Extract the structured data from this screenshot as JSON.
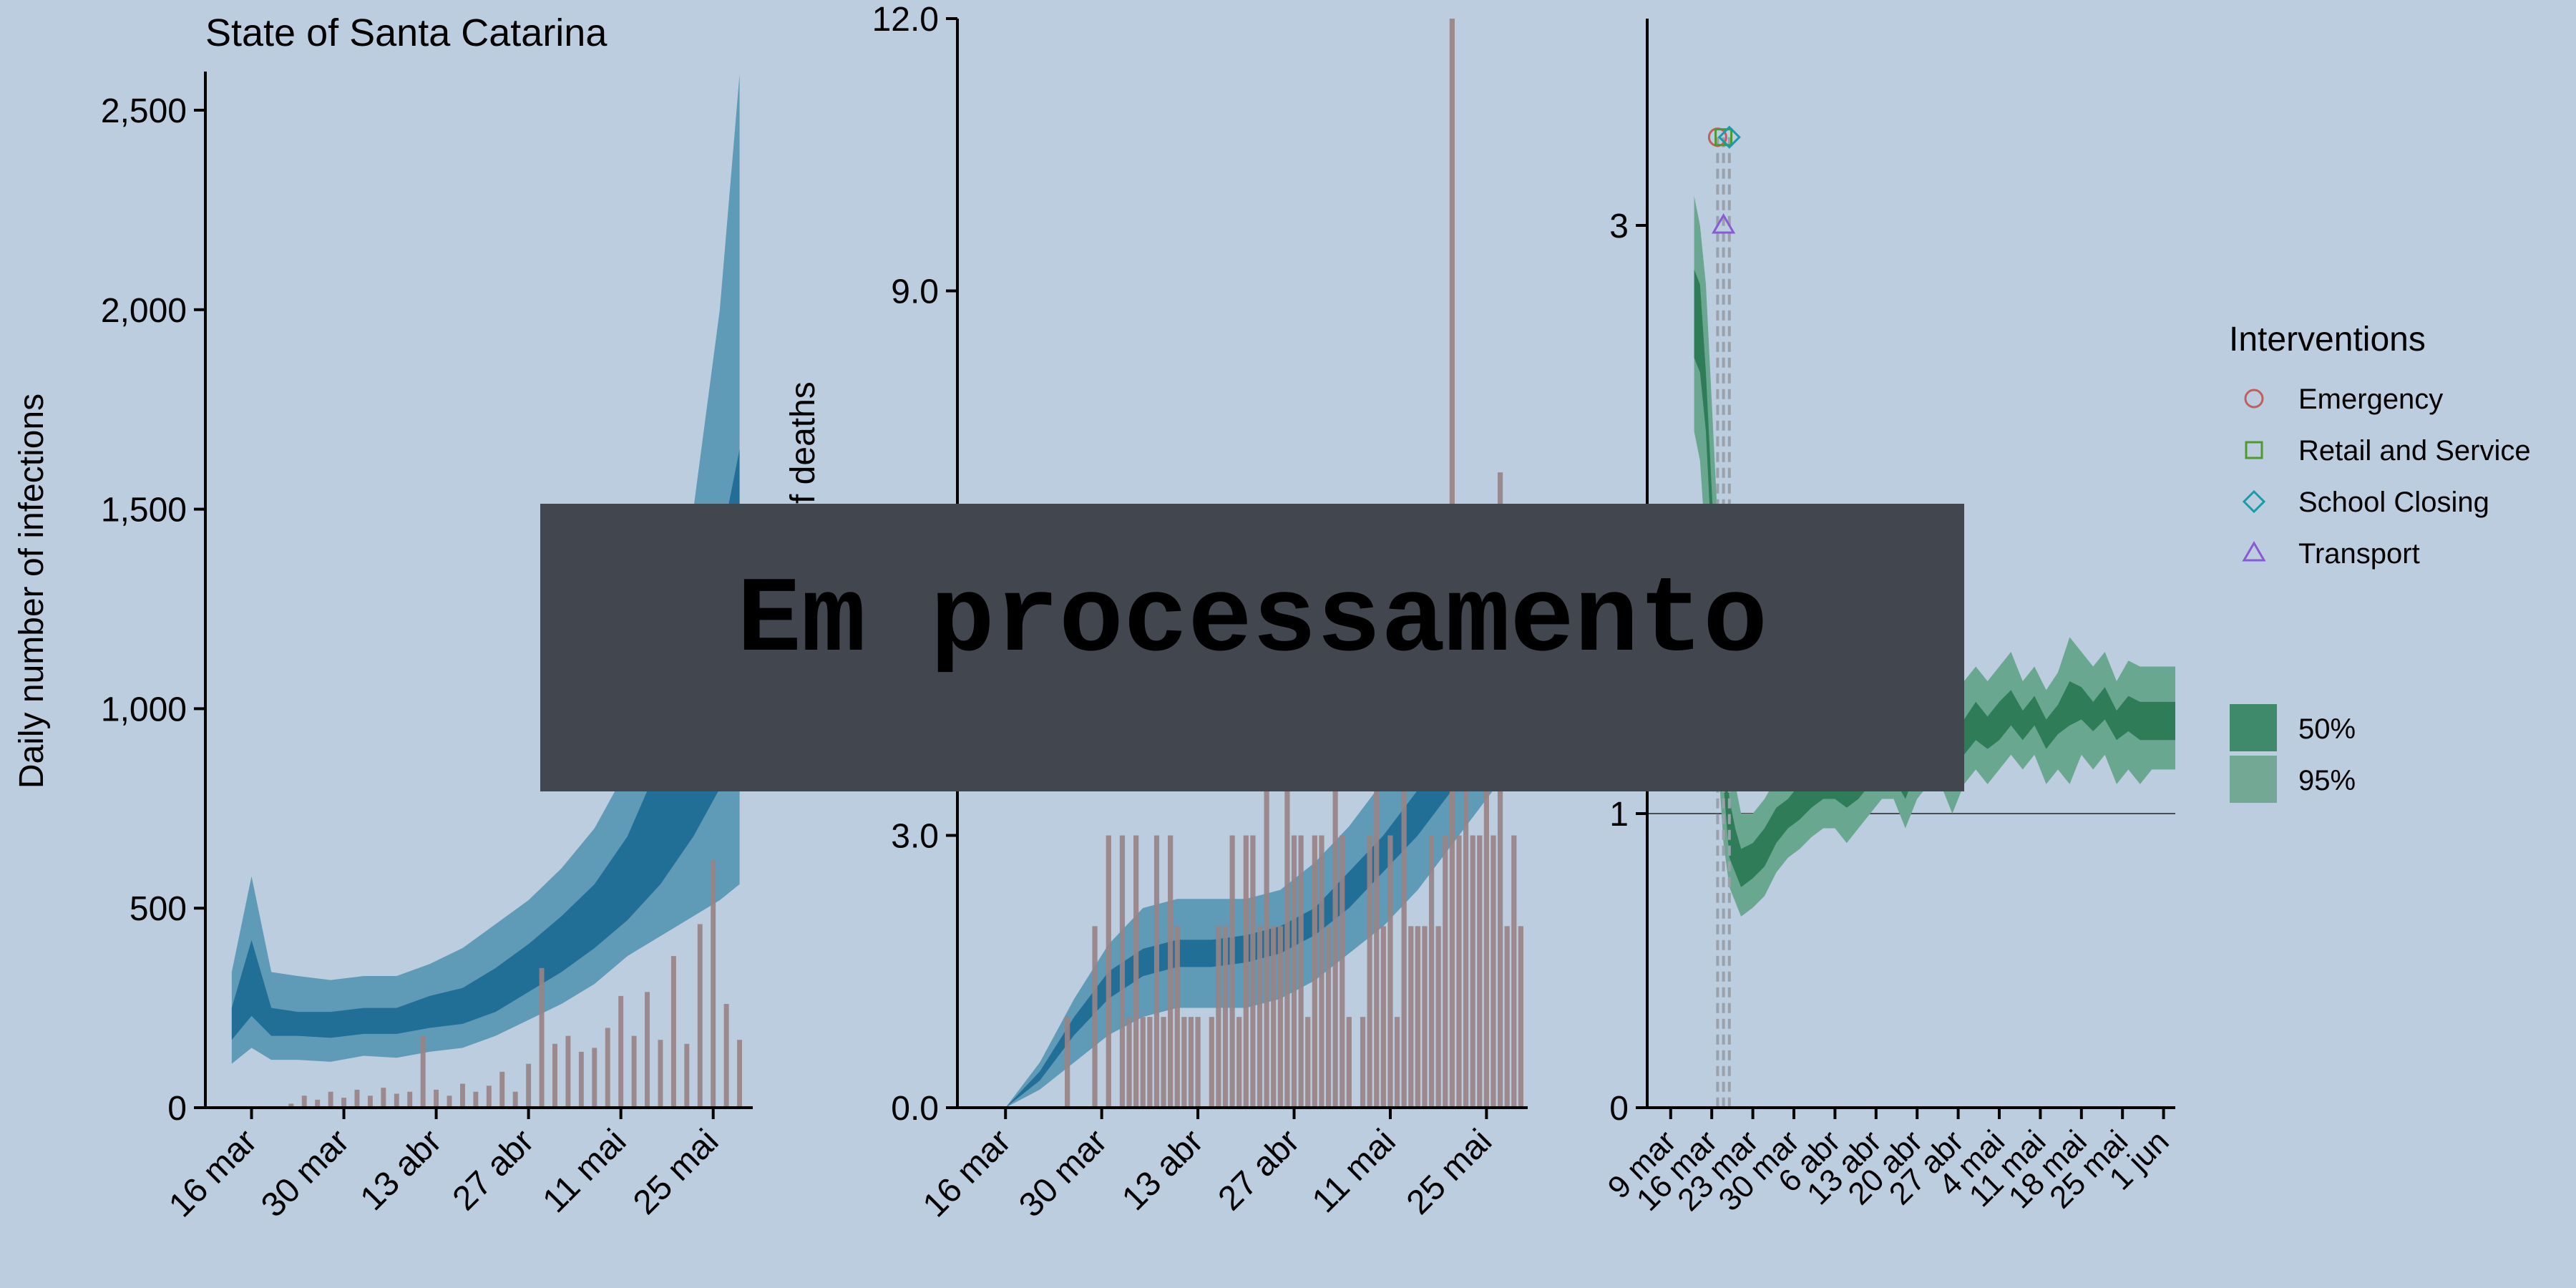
{
  "title": "State of Santa Catarina",
  "overlay_text": "Em processamento",
  "chart_data": [
    {
      "type": "area",
      "panel": "infections",
      "ylabel": "Daily number of infections",
      "ylim": [
        0,
        2600
      ],
      "yticks": [
        0,
        500,
        1000,
        1500,
        2000,
        2500
      ],
      "ytick_labels": [
        "0",
        "500",
        "1,000",
        "1,500",
        "2,000",
        "2,500"
      ],
      "xlim": [
        -4,
        79
      ],
      "xticks": [
        3,
        17,
        31,
        45,
        59,
        73
      ],
      "xtick_labels": [
        "16 mar",
        "30 mar",
        "13 abr",
        "27 abr",
        "11 mai",
        "25 mai"
      ],
      "band95": {
        "x": [
          0,
          3,
          6,
          10,
          15,
          20,
          25,
          30,
          35,
          40,
          45,
          50,
          55,
          60,
          65,
          70,
          74,
          77
        ],
        "low": [
          110,
          150,
          120,
          120,
          115,
          130,
          125,
          140,
          150,
          180,
          220,
          260,
          310,
          380,
          430,
          480,
          520,
          560
        ],
        "high": [
          340,
          580,
          340,
          330,
          320,
          330,
          330,
          360,
          400,
          460,
          520,
          600,
          700,
          850,
          1100,
          1500,
          2000,
          2590
        ]
      },
      "band50": {
        "x": [
          0,
          3,
          6,
          10,
          15,
          20,
          25,
          30,
          35,
          40,
          45,
          50,
          55,
          60,
          65,
          70,
          74,
          77
        ],
        "low": [
          170,
          230,
          180,
          180,
          175,
          185,
          185,
          200,
          210,
          240,
          290,
          340,
          400,
          470,
          560,
          680,
          800,
          950
        ],
        "high": [
          250,
          420,
          250,
          240,
          240,
          250,
          250,
          280,
          300,
          350,
          410,
          480,
          560,
          680,
          870,
          1150,
          1400,
          1650
        ]
      },
      "observed": {
        "x": [
          9,
          11,
          13,
          15,
          17,
          19,
          21,
          23,
          25,
          27,
          29,
          31,
          33,
          35,
          37,
          39,
          41,
          43,
          45,
          47,
          49,
          51,
          53,
          55,
          57,
          59,
          61,
          63,
          65,
          67,
          69,
          71,
          73,
          75,
          77
        ],
        "values": [
          10,
          30,
          20,
          40,
          25,
          45,
          30,
          50,
          35,
          40,
          180,
          45,
          30,
          60,
          40,
          55,
          90,
          40,
          110,
          350,
          160,
          180,
          140,
          150,
          200,
          280,
          180,
          290,
          170,
          380,
          160,
          460,
          620,
          260,
          170
        ]
      }
    },
    {
      "type": "area",
      "panel": "deaths",
      "ylabel": "Daily number of deaths",
      "ylim": [
        0,
        12
      ],
      "yticks": [
        0,
        3,
        6,
        9,
        12
      ],
      "ytick_labels": [
        "0.0",
        "3.0",
        "6.0",
        "9.0",
        "12.0"
      ],
      "xlim": [
        -4,
        79
      ],
      "xticks": [
        3,
        17,
        31,
        45,
        59,
        73
      ],
      "xtick_labels": [
        "16 mar",
        "30 mar",
        "13 abr",
        "27 abr",
        "11 mai",
        "25 mai"
      ],
      "band95": {
        "x": [
          3,
          8,
          13,
          18,
          23,
          28,
          33,
          38,
          43,
          48,
          53,
          58,
          63,
          68,
          73,
          78
        ],
        "low": [
          0,
          0.2,
          0.5,
          0.8,
          1.0,
          1.1,
          1.1,
          1.1,
          1.2,
          1.4,
          1.7,
          2.0,
          2.4,
          2.9,
          3.4,
          3.9
        ],
        "high": [
          0,
          0.5,
          1.2,
          1.8,
          2.2,
          2.3,
          2.3,
          2.3,
          2.4,
          2.7,
          3.1,
          3.6,
          4.2,
          4.9,
          5.6,
          6.4
        ]
      },
      "band50": {
        "x": [
          3,
          8,
          13,
          18,
          23,
          28,
          33,
          38,
          43,
          48,
          53,
          58,
          63,
          68,
          73,
          78
        ],
        "low": [
          0,
          0.3,
          0.8,
          1.2,
          1.45,
          1.55,
          1.55,
          1.6,
          1.7,
          1.9,
          2.2,
          2.6,
          3.0,
          3.5,
          4.0,
          4.6
        ],
        "high": [
          0,
          0.4,
          1.0,
          1.5,
          1.75,
          1.85,
          1.85,
          1.9,
          2.0,
          2.2,
          2.6,
          3.0,
          3.5,
          4.0,
          4.6,
          5.2
        ]
      },
      "observed": {
        "x": [
          12,
          16,
          18,
          20,
          21,
          22,
          23,
          24,
          25,
          26,
          27,
          28,
          29,
          30,
          31,
          33,
          34,
          35,
          36,
          37,
          38,
          39,
          40,
          41,
          42,
          43,
          44,
          45,
          46,
          47,
          48,
          49,
          50,
          51,
          52,
          53,
          55,
          56,
          57,
          58,
          59,
          60,
          61,
          62,
          63,
          64,
          65,
          66,
          67,
          68,
          69,
          70,
          71,
          72,
          73,
          74,
          75,
          76,
          77,
          78
        ],
        "values": [
          1,
          2,
          3,
          3,
          1,
          3,
          1,
          1,
          3,
          1,
          3,
          2,
          1,
          1,
          1,
          1,
          2,
          2,
          3,
          1,
          3,
          3,
          2,
          4,
          2,
          2,
          4,
          3,
          3,
          1,
          3,
          3,
          2,
          4,
          3,
          1,
          1,
          3,
          4,
          2,
          3,
          1,
          4,
          2,
          2,
          2,
          3,
          2,
          3,
          12,
          3,
          4,
          3,
          3,
          4,
          3,
          7,
          2,
          3,
          2
        ]
      }
    },
    {
      "type": "area",
      "panel": "rt",
      "ylim": [
        0,
        3.5
      ],
      "yticks": [
        0,
        1,
        3
      ],
      "ytick_labels": [
        "0",
        "1",
        "3"
      ],
      "xlim": [
        -4,
        86
      ],
      "xticks": [
        0,
        7,
        14,
        21,
        28,
        35,
        42,
        49,
        56,
        63,
        70,
        77,
        84
      ],
      "xtick_labels": [
        "9 mar",
        "16 mar",
        "23 mar",
        "30 mar",
        "6 abr",
        "13 abr",
        "20 abr",
        "27 abr",
        "4 mai",
        "11 mai",
        "18 mai",
        "25 mai",
        "1 jun"
      ],
      "reference_line": 1,
      "band95": {
        "x": [
          4,
          5,
          6,
          7,
          8,
          9,
          10,
          11,
          12,
          14,
          16,
          18,
          20,
          22,
          24,
          26,
          28,
          30,
          32,
          34,
          36,
          38,
          40,
          42,
          44,
          46,
          48,
          50,
          52,
          54,
          56,
          58,
          60,
          62,
          64,
          66,
          68,
          70,
          72,
          74,
          76,
          78,
          80,
          82,
          84,
          86
        ],
        "low": [
          2.3,
          2.2,
          1.9,
          1.5,
          1.2,
          0.9,
          0.75,
          0.7,
          0.65,
          0.68,
          0.72,
          0.8,
          0.85,
          0.88,
          0.92,
          0.95,
          0.95,
          0.9,
          0.95,
          1.0,
          1.05,
          1.05,
          0.95,
          1.05,
          1.1,
          1.1,
          1.0,
          1.1,
          1.15,
          1.1,
          1.15,
          1.2,
          1.15,
          1.2,
          1.1,
          1.15,
          1.1,
          1.2,
          1.15,
          1.2,
          1.1,
          1.15,
          1.1,
          1.15,
          1.15,
          1.15
        ],
        "high": [
          3.1,
          3.0,
          2.8,
          2.4,
          2.0,
          1.6,
          1.25,
          1.1,
          1.0,
          1.0,
          1.05,
          1.12,
          1.15,
          1.2,
          1.22,
          1.25,
          1.3,
          1.28,
          1.3,
          1.32,
          1.35,
          1.3,
          1.25,
          1.35,
          1.4,
          1.4,
          1.3,
          1.45,
          1.5,
          1.45,
          1.5,
          1.55,
          1.45,
          1.5,
          1.42,
          1.48,
          1.6,
          1.55,
          1.5,
          1.55,
          1.45,
          1.52,
          1.5,
          1.5,
          1.5,
          1.5
        ]
      },
      "band50": {
        "x": [
          4,
          5,
          6,
          7,
          8,
          9,
          10,
          11,
          12,
          14,
          16,
          18,
          20,
          22,
          24,
          26,
          28,
          30,
          32,
          34,
          36,
          38,
          40,
          42,
          44,
          46,
          48,
          50,
          52,
          54,
          56,
          58,
          60,
          62,
          64,
          66,
          68,
          70,
          72,
          74,
          76,
          78,
          80,
          82,
          84,
          86
        ],
        "low": [
          2.55,
          2.5,
          2.3,
          1.9,
          1.5,
          1.1,
          0.85,
          0.8,
          0.75,
          0.78,
          0.82,
          0.9,
          0.95,
          0.98,
          1.02,
          1.05,
          1.05,
          1.02,
          1.05,
          1.1,
          1.15,
          1.12,
          1.05,
          1.15,
          1.2,
          1.2,
          1.12,
          1.2,
          1.25,
          1.22,
          1.25,
          1.3,
          1.25,
          1.3,
          1.22,
          1.27,
          1.3,
          1.32,
          1.28,
          1.32,
          1.25,
          1.28,
          1.25,
          1.25,
          1.25,
          1.25
        ],
        "high": [
          2.85,
          2.8,
          2.5,
          2.1,
          1.7,
          1.3,
          1.05,
          0.95,
          0.88,
          0.9,
          0.95,
          1.02,
          1.05,
          1.1,
          1.12,
          1.15,
          1.18,
          1.15,
          1.18,
          1.22,
          1.25,
          1.2,
          1.15,
          1.25,
          1.3,
          1.3,
          1.2,
          1.32,
          1.38,
          1.33,
          1.38,
          1.42,
          1.35,
          1.4,
          1.32,
          1.37,
          1.45,
          1.43,
          1.38,
          1.43,
          1.35,
          1.4,
          1.38,
          1.38,
          1.38,
          1.38
        ]
      },
      "intervention_lines": [
        8,
        9,
        10
      ]
    }
  ],
  "legend": {
    "title": "Interventions",
    "items": [
      {
        "label": "Emergency",
        "shape": "circle",
        "color": "#c0605a",
        "x": 8,
        "y": 3.3
      },
      {
        "label": "Retail and Service",
        "shape": "square",
        "color": "#4f9a2e",
        "x": 9,
        "y": 3.3
      },
      {
        "label": "School Closing",
        "shape": "diamond",
        "color": "#1a9ba8",
        "x": 10,
        "y": 3.3
      },
      {
        "label": "Transport",
        "shape": "triangle",
        "color": "#8a5ad6",
        "x": 9,
        "y": 3.0
      }
    ],
    "intervals": [
      {
        "label": "50%",
        "color": "#3e8a6a"
      },
      {
        "label": "95%",
        "color": "#72a894"
      }
    ]
  },
  "colors": {
    "background": "#bccddf",
    "band95_blue": "#5f9ab6",
    "band50_blue": "#216e96",
    "bars": "#998386",
    "band95_green": "#6aa790",
    "band50_green": "#2f7c58",
    "intervention_line": "#9aa1aa"
  }
}
